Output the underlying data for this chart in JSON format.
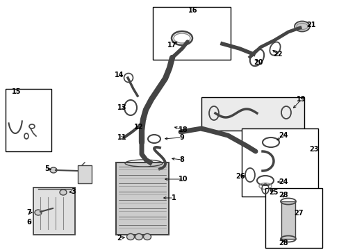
{
  "bg_color": "#ffffff",
  "gray": "#444444",
  "lgray": "#888888",
  "llgray": "#cccccc"
}
